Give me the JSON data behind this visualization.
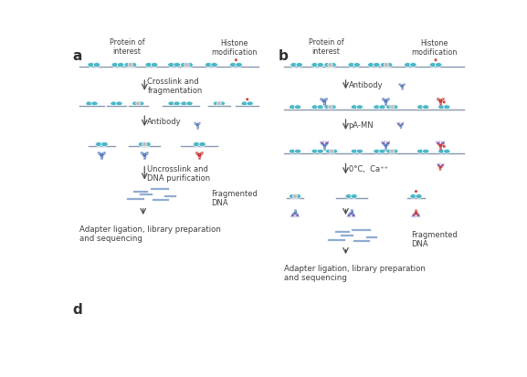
{
  "background_color": "#ffffff",
  "teal_color": "#4ab8c8",
  "gray_color": "#c0bfbf",
  "blue_antibody": "#6080c0",
  "red_antibody": "#c84040",
  "purple_pAmn": "#8060b0",
  "dna_line_color": "#90acd0",
  "text_color": "#404040",
  "arrow_color": "#505050",
  "panel_a_label": "a",
  "panel_b_label": "b",
  "panel_d_label": "d",
  "label_protein": "Protein of\ninterest",
  "label_histone": "Histone\nmodification",
  "label_crosslink": "Crosslink and\nfragmentation",
  "label_antibody": "Antibody",
  "label_uncrosslink": "Uncrosslink and\nDNA purification",
  "label_frag_dna": "Fragmented\nDNA",
  "label_adapter": "Adapter ligation, library preparation\nand sequencing",
  "label_pAmn": "pA-MN",
  "label_0c": "0°C,  Ca⁺⁺"
}
